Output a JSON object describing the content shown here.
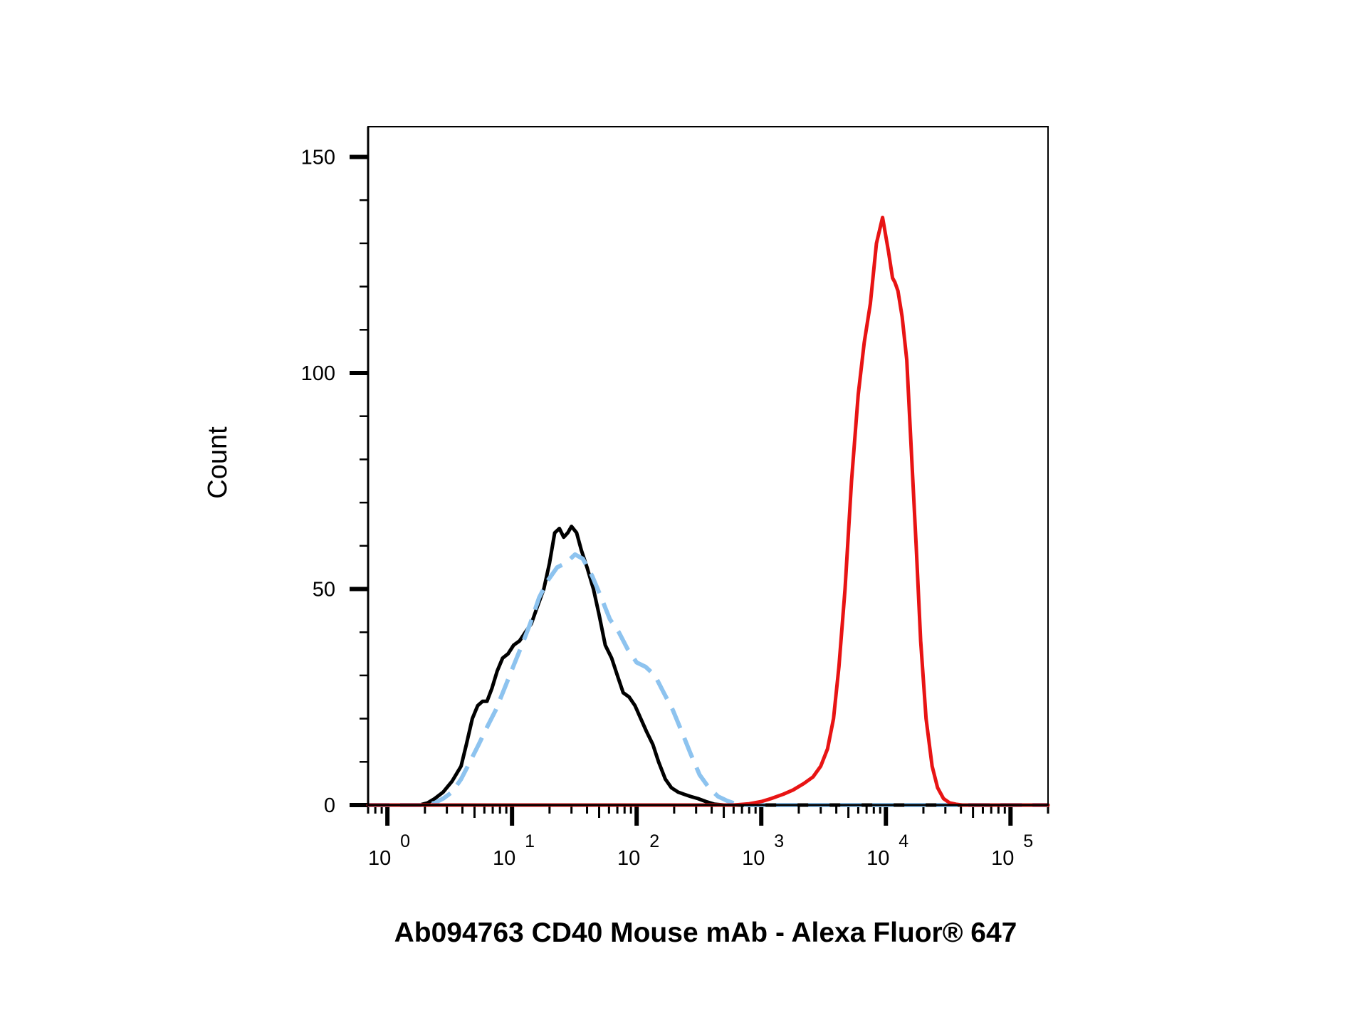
{
  "chart_data": {
    "type": "line",
    "title": "",
    "xlabel": "Ab094763 CD40 Mouse mAb - Alexa Fluor® 647",
    "ylabel": "Count",
    "xscale": "log",
    "xlim": [
      0.7,
      200000
    ],
    "ylim": [
      0,
      157
    ],
    "grid": false,
    "legend": "none",
    "y_ticks": [
      {
        "value": 0,
        "label": "0"
      },
      {
        "value": 50,
        "label": "50"
      },
      {
        "value": 100,
        "label": "100"
      },
      {
        "value": 150,
        "label": "150"
      }
    ],
    "x_ticks": [
      {
        "value": 1,
        "base": "10",
        "exp": "0"
      },
      {
        "value": 10,
        "base": "10",
        "exp": "1"
      },
      {
        "value": 100,
        "base": "10",
        "exp": "2"
      },
      {
        "value": 1000,
        "base": "10",
        "exp": "3"
      },
      {
        "value": 10000,
        "base": "10",
        "exp": "4"
      },
      {
        "value": 100000,
        "base": "10",
        "exp": "5"
      }
    ],
    "series": [
      {
        "color": "#000000",
        "style": "solid",
        "x": [
          0.7,
          1.8,
          2.1,
          2.4,
          2.8,
          3.3,
          3.9,
          4.3,
          4.8,
          5.3,
          5.8,
          6.3,
          6.9,
          7.6,
          8.4,
          9.3,
          10.3,
          11.5,
          12.8,
          14.3,
          16,
          18,
          20,
          22,
          24,
          26,
          28,
          30,
          33,
          36,
          40,
          45,
          50,
          56,
          63,
          70,
          78,
          87,
          97,
          108,
          120,
          135,
          150,
          170,
          190,
          215,
          240,
          270,
          310,
          360,
          420,
          500,
          700,
          200000
        ],
        "y": [
          0,
          0,
          0.5,
          1.5,
          3,
          5.5,
          9,
          14,
          20,
          23,
          24,
          24,
          27,
          31,
          34,
          35,
          37,
          38,
          40,
          42,
          46,
          50,
          56,
          63,
          64,
          62,
          63,
          64.5,
          63,
          59,
          55,
          50,
          44,
          37,
          34,
          30,
          26,
          25,
          23,
          20,
          17,
          14,
          10,
          6,
          4,
          3,
          2.5,
          2,
          1.5,
          0.8,
          0.2,
          0,
          0,
          0
        ]
      },
      {
        "color": "#8dc3ef",
        "style": "dashed",
        "x": [
          0.7,
          2.0,
          2.4,
          2.8,
          3.3,
          3.9,
          4.6,
          5.4,
          6.3,
          7.4,
          8.7,
          10.2,
          12,
          14,
          16.5,
          19.4,
          23,
          27,
          32,
          37,
          44,
          52,
          61,
          72,
          85,
          100,
          118,
          140,
          165,
          195,
          230,
          270,
          320,
          380,
          450,
          530,
          620,
          800,
          200000
        ],
        "y": [
          0,
          0,
          0.5,
          1.5,
          3,
          6,
          10,
          14,
          18,
          22,
          27,
          32,
          37,
          42,
          48,
          52,
          55,
          56,
          58,
          57,
          53,
          48,
          43,
          40,
          36,
          33,
          32,
          30,
          26,
          22,
          17,
          12,
          7,
          4,
          2,
          1,
          0.3,
          0,
          0
        ]
      },
      {
        "color": "#e81414",
        "style": "solid",
        "x": [
          0.7,
          400,
          600,
          800,
          1000,
          1200,
          1500,
          1800,
          2200,
          2600,
          3000,
          3400,
          3800,
          4200,
          4700,
          5300,
          6000,
          6700,
          7500,
          8400,
          9400,
          10500,
          11300,
          11800,
          12500,
          13500,
          14700,
          16000,
          17500,
          19000,
          21000,
          23500,
          26000,
          29000,
          32500,
          36500,
          41000,
          46000,
          52000,
          60000,
          200000
        ],
        "y": [
          0,
          0,
          0,
          0.3,
          0.8,
          1.5,
          2.5,
          3.5,
          5,
          6.5,
          9,
          13,
          20,
          32,
          50,
          75,
          95,
          107,
          116,
          130,
          136,
          128,
          122,
          121,
          119,
          113,
          103,
          82,
          60,
          38,
          20,
          9,
          4,
          1.5,
          0.5,
          0.2,
          0,
          0,
          0,
          0,
          0
        ]
      }
    ]
  }
}
